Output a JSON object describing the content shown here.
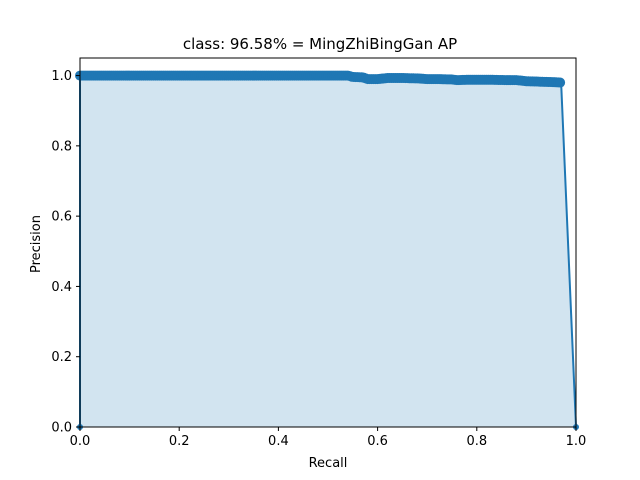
{
  "chart_data": {
    "type": "area",
    "title": "class: 96.58% = MingZhiBingGan AP",
    "xlabel": "Recall",
    "ylabel": "Precision",
    "xlim": [
      0.0,
      1.0
    ],
    "ylim": [
      0.0,
      1.05
    ],
    "x_ticks": [
      "0.0",
      "0.2",
      "0.4",
      "0.6",
      "0.8",
      "1.0"
    ],
    "y_ticks": [
      "0.0",
      "0.2",
      "0.4",
      "0.6",
      "0.8",
      "1.0"
    ],
    "grid": false,
    "colors": {
      "line": "#1f77b4",
      "fill": "#1f77b4",
      "fill_opacity": 0.2
    },
    "series": [
      {
        "x": [
          0.0,
          0.0,
          0.54,
          0.55,
          0.57,
          0.58,
          0.6,
          0.62,
          0.65,
          0.68,
          0.7,
          0.72,
          0.75,
          0.76,
          0.78,
          0.8,
          0.83,
          0.86,
          0.88,
          0.9,
          0.92,
          0.94,
          0.96,
          0.97,
          0.97,
          1.0
        ],
        "y": [
          0.0,
          1.0,
          1.0,
          0.996,
          0.995,
          0.99,
          0.99,
          0.993,
          0.993,
          0.992,
          0.99,
          0.99,
          0.989,
          0.987,
          0.988,
          0.988,
          0.988,
          0.987,
          0.987,
          0.984,
          0.983,
          0.982,
          0.981,
          0.98,
          0.98,
          0.0
        ]
      }
    ]
  }
}
